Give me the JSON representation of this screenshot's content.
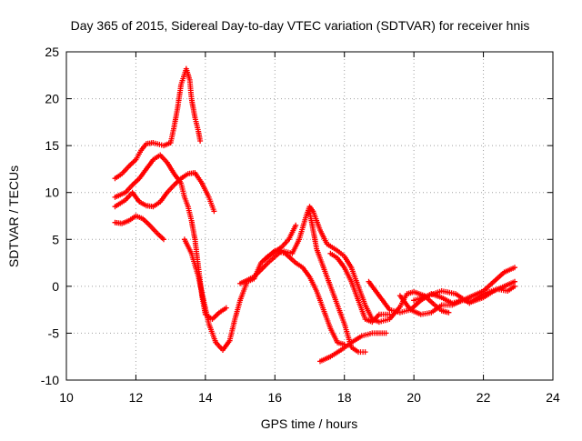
{
  "chart_data": {
    "type": "scatter",
    "title": "Day 365 of 2015, Sidereal Day-to-day VTEC variation (SDTVAR) for receiver hnis",
    "xlabel": "GPS time / hours",
    "ylabel": "SDTVAR / TECUs",
    "xlim": [
      10,
      24
    ],
    "ylim": [
      -10,
      25
    ],
    "xticks": [
      10,
      12,
      14,
      16,
      18,
      20,
      22,
      24
    ],
    "yticks": [
      -10,
      -5,
      0,
      5,
      10,
      15,
      20,
      25
    ],
    "xtick_labels": [
      "10",
      "12",
      "14",
      "16",
      "18",
      "20",
      "22",
      "24"
    ],
    "ytick_labels": [
      "-10",
      "-5",
      "0",
      "5",
      "10",
      "15",
      "20",
      "25"
    ],
    "grid": true,
    "marker": "plus",
    "color": "#ff0000",
    "series": [
      {
        "name": "track-1",
        "points": [
          [
            11.4,
            11.5
          ],
          [
            11.6,
            12
          ],
          [
            11.8,
            12.8
          ],
          [
            12.0,
            13.5
          ],
          [
            12.15,
            14.5
          ],
          [
            12.3,
            15.2
          ],
          [
            12.5,
            15.3
          ],
          [
            12.8,
            15.0
          ],
          [
            13.0,
            15.3
          ]
        ]
      },
      {
        "name": "track-2",
        "points": [
          [
            13.0,
            15.3
          ],
          [
            13.1,
            17
          ],
          [
            13.2,
            19
          ],
          [
            13.3,
            21.5
          ],
          [
            13.45,
            23.2
          ],
          [
            13.55,
            22
          ],
          [
            13.6,
            20
          ],
          [
            13.7,
            18
          ],
          [
            13.8,
            16.5
          ],
          [
            13.85,
            15.5
          ]
        ]
      },
      {
        "name": "track-3",
        "points": [
          [
            11.4,
            9.5
          ],
          [
            11.7,
            10
          ],
          [
            11.9,
            10.8
          ],
          [
            12.1,
            11.5
          ],
          [
            12.3,
            12.5
          ],
          [
            12.5,
            13.5
          ],
          [
            12.7,
            14.0
          ],
          [
            12.9,
            13.2
          ],
          [
            13.1,
            12.0
          ],
          [
            13.3,
            11.0
          ],
          [
            13.4,
            9.5
          ],
          [
            13.5,
            8.5
          ],
          [
            13.6,
            7.0
          ],
          [
            13.7,
            5.0
          ],
          [
            13.8,
            2.0
          ],
          [
            13.9,
            -1.0
          ],
          [
            14.0,
            -3.0
          ],
          [
            14.2,
            -3.5
          ],
          [
            14.4,
            -2.8
          ],
          [
            14.6,
            -2.3
          ]
        ]
      },
      {
        "name": "track-4",
        "points": [
          [
            11.4,
            8.5
          ],
          [
            11.7,
            9.2
          ],
          [
            11.9,
            10.0
          ],
          [
            12.1,
            9.0
          ],
          [
            12.3,
            8.6
          ],
          [
            12.5,
            8.5
          ],
          [
            12.7,
            9.0
          ],
          [
            12.9,
            10.0
          ],
          [
            13.1,
            10.8
          ],
          [
            13.3,
            11.5
          ],
          [
            13.5,
            12.0
          ],
          [
            13.7,
            12.1
          ],
          [
            13.9,
            11.0
          ],
          [
            14.1,
            9.5
          ],
          [
            14.25,
            8.0
          ]
        ]
      },
      {
        "name": "track-5",
        "points": [
          [
            11.4,
            6.8
          ],
          [
            11.6,
            6.7
          ],
          [
            11.8,
            7.0
          ],
          [
            12.0,
            7.5
          ],
          [
            12.2,
            7.2
          ],
          [
            12.4,
            6.5
          ],
          [
            12.6,
            5.7
          ],
          [
            12.8,
            5.0
          ]
        ]
      },
      {
        "name": "track-6",
        "points": [
          [
            13.4,
            5.0
          ],
          [
            13.6,
            3.5
          ],
          [
            13.8,
            1.0
          ],
          [
            13.95,
            -1.5
          ],
          [
            14.1,
            -4.0
          ],
          [
            14.3,
            -6.0
          ],
          [
            14.5,
            -6.8
          ],
          [
            14.7,
            -5.8
          ],
          [
            14.85,
            -3.5
          ],
          [
            15.0,
            -1.5
          ],
          [
            15.2,
            0.5
          ],
          [
            15.4,
            0.8
          ],
          [
            15.6,
            2.5
          ],
          [
            15.8,
            3.2
          ],
          [
            16.0,
            3.7
          ],
          [
            16.2,
            4.2
          ],
          [
            16.4,
            5.0
          ],
          [
            16.6,
            6.5
          ]
        ]
      },
      {
        "name": "track-7",
        "points": [
          [
            15.0,
            0.3
          ],
          [
            15.4,
            1.0
          ],
          [
            15.8,
            2.5
          ],
          [
            16.2,
            3.8
          ],
          [
            16.5,
            3.5
          ],
          [
            16.7,
            5.0
          ],
          [
            16.9,
            7.5
          ],
          [
            17.0,
            8.5
          ],
          [
            17.1,
            8.0
          ],
          [
            17.3,
            6.0
          ],
          [
            17.5,
            4.5
          ],
          [
            17.8,
            3.8
          ],
          [
            18.0,
            3.2
          ],
          [
            18.2,
            2.0
          ],
          [
            18.4,
            0.0
          ],
          [
            18.6,
            -2.0
          ],
          [
            18.8,
            -3.5
          ],
          [
            19.0,
            -3.8
          ],
          [
            19.3,
            -3.5
          ],
          [
            19.6,
            -2.2
          ],
          [
            19.8,
            -0.8
          ],
          [
            20.0,
            -0.6
          ],
          [
            20.3,
            -1.0
          ],
          [
            20.6,
            -2.0
          ],
          [
            20.8,
            -2.6
          ],
          [
            21.0,
            -2.8
          ]
        ]
      },
      {
        "name": "track-8",
        "points": [
          [
            15.7,
            2.8
          ],
          [
            16.0,
            3.8
          ],
          [
            16.3,
            3.5
          ],
          [
            16.6,
            2.5
          ],
          [
            16.8,
            2.0
          ],
          [
            17.0,
            1.0
          ],
          [
            17.2,
            -0.5
          ],
          [
            17.4,
            -2.5
          ],
          [
            17.6,
            -4.5
          ],
          [
            17.8,
            -6.0
          ],
          [
            18.0,
            -6.2
          ]
        ]
      },
      {
        "name": "track-9",
        "points": [
          [
            17.0,
            8.0
          ],
          [
            17.1,
            6.0
          ],
          [
            17.2,
            4.0
          ],
          [
            17.4,
            2.0
          ],
          [
            17.6,
            0.0
          ],
          [
            17.8,
            -2.0
          ],
          [
            18.0,
            -4.0
          ],
          [
            18.2,
            -6.5
          ],
          [
            18.4,
            -7.0
          ],
          [
            18.6,
            -7.0
          ]
        ]
      },
      {
        "name": "track-10",
        "points": [
          [
            17.3,
            -8.0
          ],
          [
            17.6,
            -7.5
          ],
          [
            17.9,
            -6.8
          ],
          [
            18.2,
            -6.0
          ],
          [
            18.5,
            -5.3
          ],
          [
            18.8,
            -5.0
          ],
          [
            19.2,
            -5.0
          ]
        ]
      },
      {
        "name": "track-11",
        "points": [
          [
            17.6,
            3.5
          ],
          [
            17.8,
            3.0
          ],
          [
            18.0,
            2.0
          ],
          [
            18.2,
            0.5
          ],
          [
            18.4,
            -1.5
          ],
          [
            18.6,
            -3.5
          ],
          [
            18.8,
            -3.8
          ],
          [
            19.0,
            -3.0
          ],
          [
            19.3,
            -3.0
          ]
        ]
      },
      {
        "name": "track-12",
        "points": [
          [
            18.7,
            0.5
          ],
          [
            19.0,
            -1.0
          ],
          [
            19.3,
            -2.5
          ],
          [
            19.6,
            -2.8
          ],
          [
            19.9,
            -2.5
          ],
          [
            20.2,
            -1.5
          ],
          [
            20.5,
            -0.8
          ],
          [
            20.8,
            -1.2
          ],
          [
            21.1,
            -1.8
          ],
          [
            21.4,
            -1.5
          ],
          [
            21.7,
            -1.0
          ],
          [
            22.0,
            -0.5
          ],
          [
            22.3,
            0.5
          ],
          [
            22.6,
            1.5
          ],
          [
            22.9,
            2.0
          ]
        ]
      },
      {
        "name": "track-13",
        "points": [
          [
            19.6,
            -1.0
          ],
          [
            19.9,
            -2.5
          ],
          [
            20.2,
            -3.0
          ],
          [
            20.5,
            -2.8
          ],
          [
            20.8,
            -2.0
          ],
          [
            21.1,
            -2.0
          ],
          [
            21.4,
            -1.5
          ],
          [
            21.7,
            -1.6
          ],
          [
            22.0,
            -1.2
          ],
          [
            22.3,
            -0.5
          ],
          [
            22.6,
            0.0
          ],
          [
            22.9,
            0.5
          ]
        ]
      },
      {
        "name": "track-14",
        "points": [
          [
            20.0,
            -1.5
          ],
          [
            20.4,
            -1.0
          ],
          [
            20.8,
            -0.5
          ],
          [
            21.2,
            -0.8
          ],
          [
            21.6,
            -1.8
          ],
          [
            22.0,
            -0.8
          ],
          [
            22.4,
            -0.3
          ],
          [
            22.7,
            -0.5
          ],
          [
            22.9,
            0.0
          ]
        ]
      }
    ]
  }
}
